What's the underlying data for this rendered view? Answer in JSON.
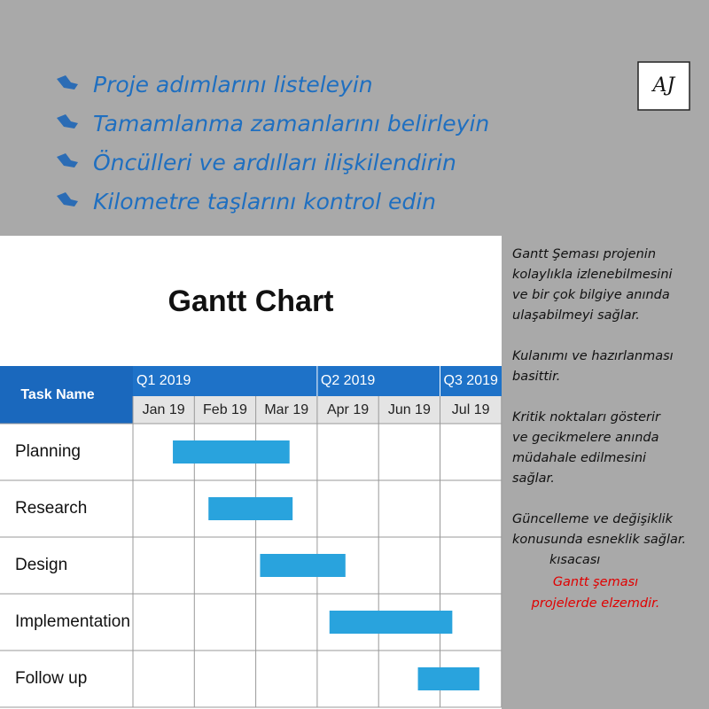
{
  "bullets": [
    "Proje adımlarını listeleyin",
    "Tamamlanma zamanlarını belirleyin",
    "Öncülleri ve ardılları ilişkilendirin",
    "Kilometre taşlarını kontrol edin"
  ],
  "logo": "AJ",
  "side_paragraphs": [
    [
      "Gantt Şeması projenin",
      "kolaylıkla izlenebilmesini",
      "ve bir çok bilgiye anında",
      "ulaşabilmeyi sağlar."
    ],
    [
      "Kulanımı ve hazırlanması",
      "basittir."
    ],
    [
      "Kritik noktaları gösterir",
      "ve gecikmelere anında",
      "müdahale edilmesini",
      "sağlar."
    ],
    [
      "Güncelleme ve değişiklik",
      "konusunda esneklik sağlar."
    ]
  ],
  "summary": "kısacası",
  "conclusion": [
    "Gantt şeması",
    "projelerde elzemdir."
  ],
  "chart_data": {
    "type": "gantt",
    "title": "Gantt Chart",
    "task_header": "Task Name",
    "quarters": [
      "Q1 2019",
      "Q2 2019",
      "Q3 2019"
    ],
    "columns": [
      "Jan 19",
      "Feb 19",
      "Mar 19",
      "Apr 19",
      "Jun 19",
      "Jul 19"
    ],
    "categories": [
      "Planning",
      "Research",
      "Design",
      "Implementation",
      "Follow up"
    ],
    "start": [
      0.65,
      1.23,
      2.07,
      3.2,
      4.64
    ],
    "end": [
      2.55,
      2.6,
      3.46,
      5.2,
      5.64
    ],
    "color": "#29a3dd"
  }
}
